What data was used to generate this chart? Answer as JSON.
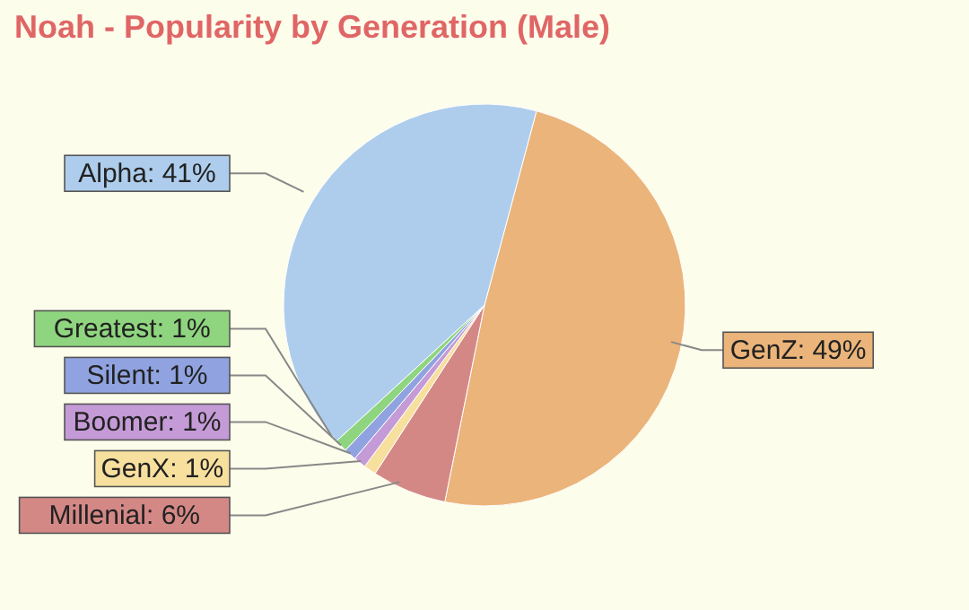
{
  "chart_data": {
    "type": "pie",
    "title": "Noah - Popularity by Generation (Male)",
    "categories": [
      "GenZ",
      "Millenial",
      "GenX",
      "Boomer",
      "Silent",
      "Greatest",
      "Alpha"
    ],
    "values": [
      49,
      6,
      1,
      1,
      1,
      1,
      41
    ],
    "colors": [
      "#ebb47a",
      "#d48886",
      "#f7df9e",
      "#c49bd6",
      "#90a3e0",
      "#8fd57f",
      "#aecdec"
    ],
    "value_labels": [
      ": 49%",
      ": 6%",
      ": 1%",
      ": 1%",
      ": 1%",
      ": 1%",
      ": 41%"
    ]
  }
}
